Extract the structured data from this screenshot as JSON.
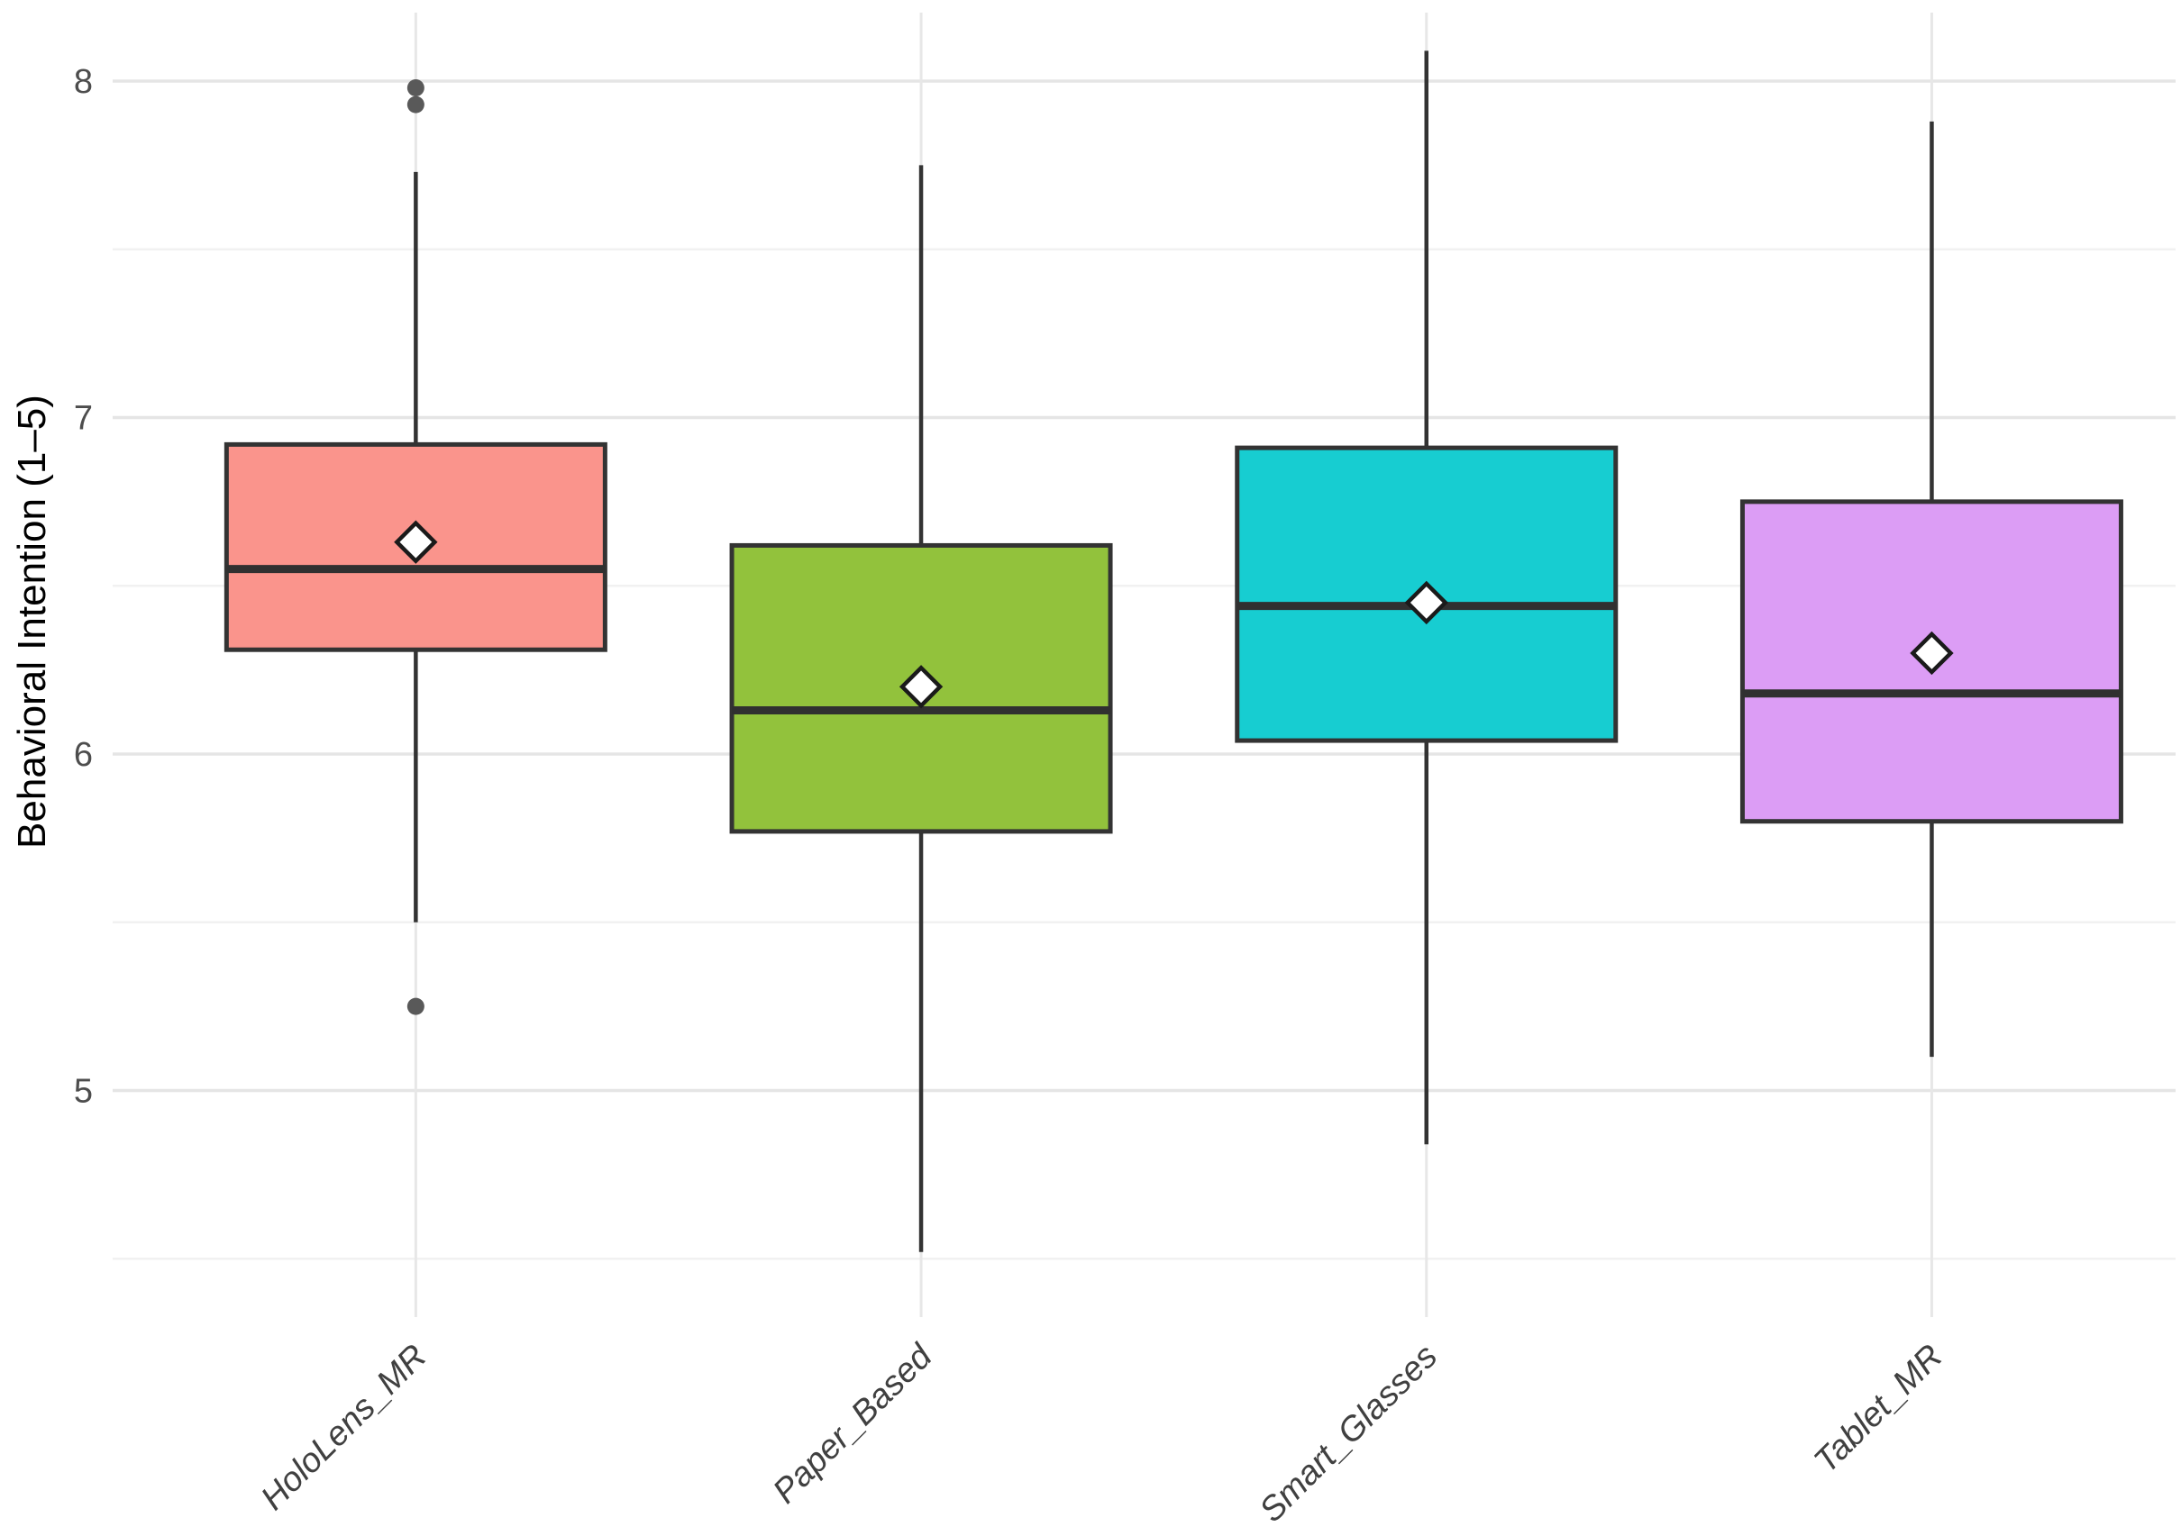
{
  "figure": {
    "background": "#FFFFFF"
  },
  "y_axis": {
    "label": "Behavioral Intention (1–5)",
    "tick_labels": [
      "8",
      "7",
      "6",
      "5"
    ],
    "tick_values": [
      8,
      7,
      6,
      5
    ],
    "minor_tick_values": [
      7.5,
      6.5,
      5.5,
      4.5
    ],
    "tick_label_color": "#4D4D4D",
    "title_color": "#000000"
  },
  "x_axis": {
    "categories": [
      "HoloLens_MR",
      "Paper_Based",
      "Smart_Glasses",
      "Tablet_MR"
    ],
    "label_color": "#404040",
    "label_style": "italic, rotated 45deg"
  },
  "chart_data": {
    "type": "boxplot",
    "title": "",
    "xlabel": "",
    "ylabel": "Behavioral Intention (1–5)",
    "ylim": [
      4.3,
      8.25
    ],
    "grid": "horizontal major+minor light gray, vertical major per category, white background, no legend",
    "legend": "none",
    "categories": [
      "HoloLens_MR",
      "Paper_Based",
      "Smart_Glasses",
      "Tablet_MR"
    ],
    "series": [
      {
        "name": "HoloLens_MR",
        "fill": "#FA948C",
        "whisker_low": 5.5,
        "q1": 6.31,
        "median": 6.55,
        "q3": 6.92,
        "whisker_high": 7.73,
        "mean": 6.63,
        "outliers": [
          7.98,
          7.93,
          5.25
        ]
      },
      {
        "name": "Paper_Based",
        "fill": "#92C23C",
        "whisker_low": 4.52,
        "q1": 5.77,
        "median": 6.13,
        "q3": 6.62,
        "whisker_high": 7.75,
        "mean": 6.2,
        "outliers": []
      },
      {
        "name": "Smart_Glasses",
        "fill": "#17CDD1",
        "whisker_low": 4.84,
        "q1": 6.04,
        "median": 6.44,
        "q3": 6.91,
        "whisker_high": 8.09,
        "mean": 6.45,
        "outliers": []
      },
      {
        "name": "Tablet_MR",
        "fill": "#DC9DF5",
        "whisker_low": 5.1,
        "q1": 5.8,
        "median": 6.18,
        "q3": 6.75,
        "whisker_high": 7.88,
        "mean": 6.3,
        "outliers": []
      }
    ],
    "style": {
      "major_grid_color": "#E5E5E5",
      "minor_grid_color": "#F1F1F1",
      "vertical_grid_color": "#E7E7E7",
      "box_border_color": "#333333",
      "median_color": "#303030",
      "whisker_color": "#333333",
      "outlier_color": "#595959",
      "mean_marker": "white diamond with black border"
    }
  }
}
